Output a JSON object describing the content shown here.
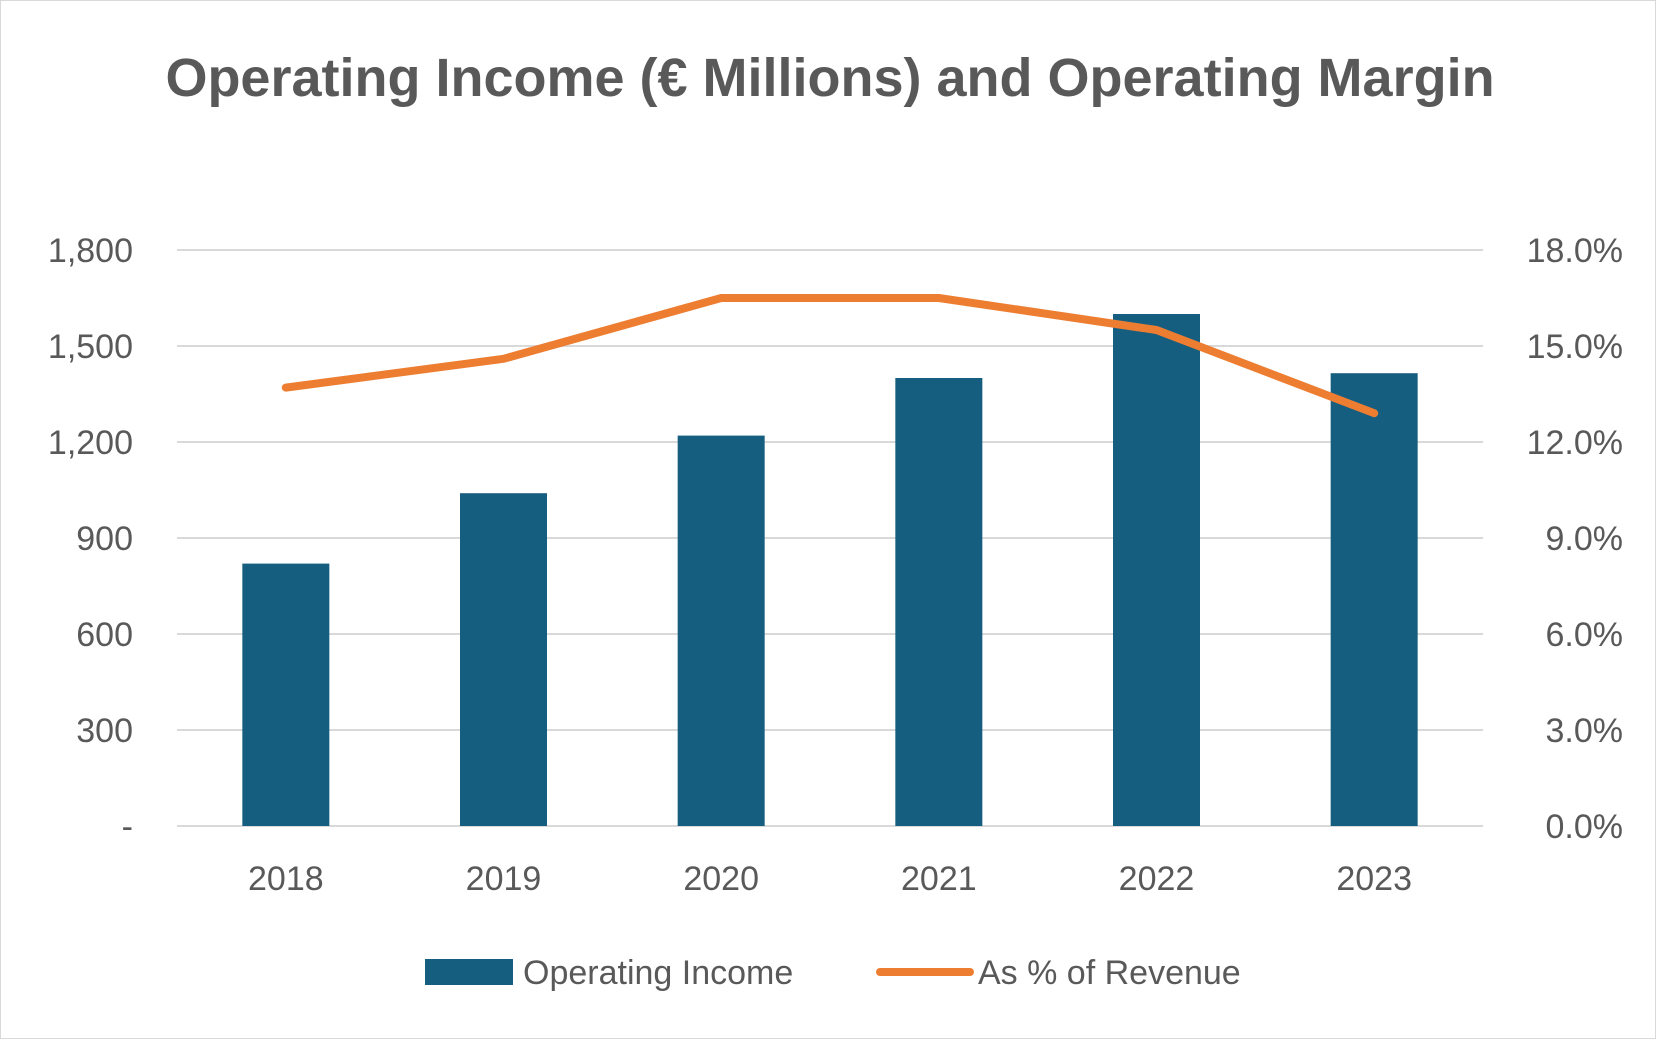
{
  "chart_data": {
    "type": "bar",
    "title": "Operating Income (€ Millions) and Operating Margin",
    "categories": [
      "2018",
      "2019",
      "2020",
      "2021",
      "2022",
      "2023"
    ],
    "series": [
      {
        "name": "Operating Income",
        "type": "bar",
        "axis": "left",
        "color": "#165e80",
        "values": [
          820,
          1040,
          1220,
          1400,
          1600,
          1415
        ]
      },
      {
        "name": "As % of Revenue",
        "type": "line",
        "axis": "right",
        "color": "#ed7d31",
        "values": [
          13.7,
          14.6,
          16.5,
          16.5,
          15.5,
          12.9
        ]
      }
    ],
    "y_left": {
      "min": 0,
      "max": 1800,
      "ticks": [
        0,
        300,
        600,
        900,
        1200,
        1500,
        1800
      ],
      "tick_labels": [
        "-",
        "300",
        "600",
        "900",
        "1,200",
        "1,500",
        "1,800"
      ]
    },
    "y_right": {
      "min": 0,
      "max": 18,
      "ticks": [
        0,
        3,
        6,
        9,
        12,
        15,
        18
      ],
      "tick_labels": [
        "0.0%",
        "3.0%",
        "6.0%",
        "9.0%",
        "12.0%",
        "15.0%",
        "18.0%"
      ]
    },
    "grid": true,
    "legend": "bottom"
  }
}
